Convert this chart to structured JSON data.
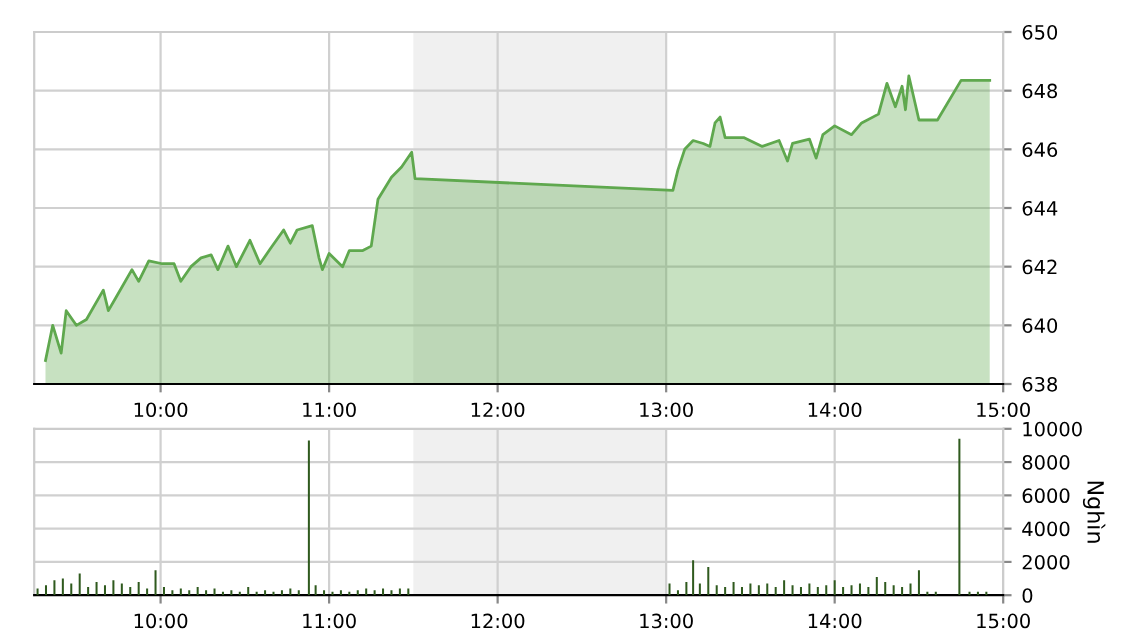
{
  "chart_data": [
    {
      "type": "area",
      "x": [
        9.317,
        9.36,
        9.41,
        9.44,
        9.5,
        9.56,
        9.66,
        9.69,
        9.73,
        9.83,
        9.87,
        9.93,
        10.01,
        10.08,
        10.12,
        10.18,
        10.24,
        10.3,
        10.34,
        10.4,
        10.45,
        10.53,
        10.59,
        10.65,
        10.73,
        10.77,
        10.81,
        10.9,
        10.94,
        10.96,
        11.0,
        11.08,
        11.12,
        11.2,
        11.25,
        11.29,
        11.37,
        11.43,
        11.49,
        11.51,
        13.04,
        13.07,
        13.11,
        13.16,
        13.22,
        13.26,
        13.29,
        13.32,
        13.35,
        13.46,
        13.57,
        13.67,
        13.72,
        13.75,
        13.85,
        13.89,
        13.93,
        14.0,
        14.1,
        14.16,
        14.26,
        14.31,
        14.36,
        14.4,
        14.42,
        14.44,
        14.5,
        14.61,
        14.75,
        14.92
      ],
      "series": [
        {
          "color": "#5fa84e",
          "values": [
            638.8,
            640.0,
            639.05,
            640.5,
            640.0,
            640.2,
            641.2,
            640.5,
            640.9,
            641.9,
            641.5,
            642.2,
            642.1,
            642.1,
            641.5,
            642.0,
            642.3,
            642.4,
            641.9,
            642.7,
            642.0,
            642.9,
            642.1,
            642.6,
            643.25,
            642.8,
            643.25,
            643.4,
            642.3,
            641.9,
            642.45,
            642.0,
            642.55,
            642.55,
            642.7,
            644.3,
            645.05,
            645.4,
            645.9,
            645.0,
            644.6,
            645.3,
            646.0,
            646.3,
            646.2,
            646.1,
            646.9,
            647.1,
            646.4,
            646.4,
            646.1,
            646.3,
            645.6,
            646.2,
            646.35,
            645.7,
            646.5,
            646.8,
            646.5,
            646.9,
            647.2,
            648.25,
            647.45,
            648.15,
            647.35,
            648.5,
            647.0,
            647.0,
            648.35,
            648.35
          ]
        }
      ],
      "xlim": [
        9.25,
        15
      ],
      "xticks": [
        {
          "value": 10,
          "label": "10:00"
        },
        {
          "value": 11,
          "label": "11:00"
        },
        {
          "value": 12,
          "label": "12:00"
        },
        {
          "value": 13,
          "label": "13:00"
        },
        {
          "value": 14,
          "label": "14:00"
        },
        {
          "value": 15,
          "label": "15:00"
        }
      ],
      "ylim": [
        638,
        650
      ],
      "yticks": [
        638,
        640,
        642,
        644,
        646,
        648,
        650
      ],
      "bands": [
        {
          "axis": "x",
          "from": 11.5,
          "to": 13,
          "color": "#f0f0f0"
        }
      ],
      "grid": true
    },
    {
      "type": "bar",
      "ylabel": "Nghìn",
      "x": [
        9.27,
        9.32,
        9.37,
        9.42,
        9.47,
        9.52,
        9.57,
        9.62,
        9.67,
        9.72,
        9.77,
        9.82,
        9.87,
        9.92,
        9.97,
        10.02,
        10.07,
        10.12,
        10.17,
        10.22,
        10.27,
        10.32,
        10.37,
        10.42,
        10.47,
        10.52,
        10.57,
        10.62,
        10.67,
        10.72,
        10.77,
        10.82,
        10.88,
        10.92,
        10.97,
        11.02,
        11.07,
        11.12,
        11.17,
        11.22,
        11.27,
        11.32,
        11.37,
        11.42,
        11.47,
        13.02,
        13.07,
        13.12,
        13.16,
        13.2,
        13.25,
        13.3,
        13.35,
        13.4,
        13.45,
        13.5,
        13.55,
        13.6,
        13.65,
        13.7,
        13.75,
        13.8,
        13.85,
        13.9,
        13.95,
        14.0,
        14.05,
        14.1,
        14.15,
        14.2,
        14.25,
        14.3,
        14.35,
        14.4,
        14.45,
        14.5,
        14.55,
        14.6,
        14.74,
        14.8,
        14.85,
        14.9
      ],
      "series": [
        {
          "color": "#2f5a1e",
          "values": [
            400,
            600,
            900,
            1000,
            700,
            1300,
            500,
            800,
            600,
            900,
            700,
            500,
            800,
            400,
            1500,
            500,
            300,
            400,
            300,
            500,
            300,
            400,
            200,
            300,
            200,
            500,
            200,
            300,
            200,
            300,
            400,
            300,
            9300,
            600,
            300,
            200,
            300,
            200,
            300,
            400,
            300,
            400,
            300,
            400,
            400,
            700,
            300,
            800,
            2100,
            700,
            1700,
            600,
            500,
            800,
            500,
            700,
            600,
            700,
            500,
            900,
            600,
            500,
            700,
            500,
            600,
            900,
            500,
            600,
            700,
            500,
            1100,
            800,
            600,
            500,
            700,
            1500,
            200,
            200,
            9400,
            200,
            200,
            200
          ]
        }
      ],
      "xlim": [
        9.25,
        15
      ],
      "xticks": [
        {
          "value": 10,
          "label": "10:00"
        },
        {
          "value": 11,
          "label": "11:00"
        },
        {
          "value": 12,
          "label": "12:00"
        },
        {
          "value": 13,
          "label": "13:00"
        },
        {
          "value": 14,
          "label": "14:00"
        },
        {
          "value": 15,
          "label": "15:00"
        }
      ],
      "ylim": [
        0,
        10000
      ],
      "yticks": [
        0,
        2000,
        4000,
        6000,
        8000,
        10000
      ],
      "bands": [
        {
          "axis": "x",
          "from": 11.5,
          "to": 13,
          "color": "#f0f0f0"
        }
      ],
      "grid": true
    }
  ]
}
